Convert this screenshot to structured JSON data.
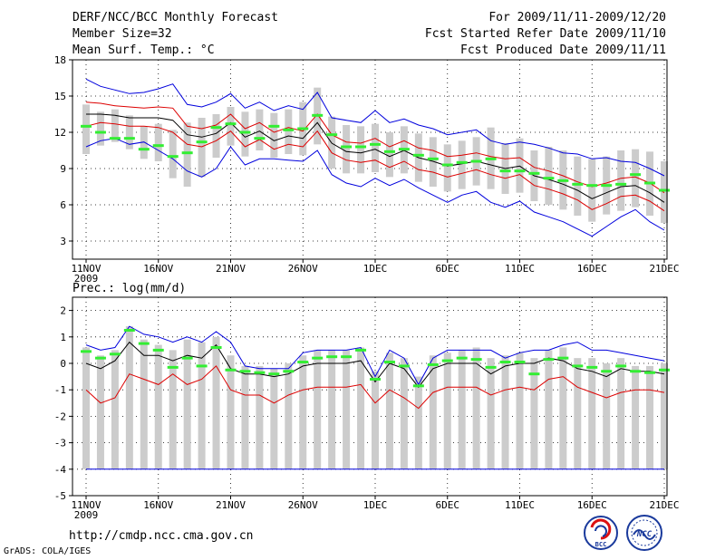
{
  "header": {
    "title": "DERF/NCC/BCC Monthly Forecast",
    "member_size": "Member Size=32",
    "variable": "Mean Surf. Temp.: °C",
    "forecast_period": "For 2009/11/11-2009/12/20",
    "start_date": "Fcst Started Refer Date 2009/11/10",
    "produced_date": "Fcst Produced Date 2009/11/11"
  },
  "footer": {
    "url": "http://cmdp.ncc.cma.gov.cn",
    "credit": "GrADS: COLA/IGES",
    "logo_bcc": "BCC",
    "logo_ncc": "NCC"
  },
  "colors": {
    "max_line": "#0000dd",
    "min_line": "#0000dd",
    "upper_line": "#dd0000",
    "lower_line": "#dd0000",
    "mean_line": "#000000",
    "observed": "#33ee33",
    "box": "#cccccc"
  },
  "x_ticks": [
    "11NOV",
    "16NOV",
    "21NOV",
    "26NOV",
    "1DEC",
    "6DEC",
    "11DEC",
    "16DEC",
    "21DEC"
  ],
  "x_year": "2009",
  "chart_data": [
    {
      "type": "line",
      "title": "Mean Surf. Temp.: °C",
      "ylabel": "°C",
      "ylim": [
        1.5,
        18
      ],
      "yticks": [
        3,
        6,
        9,
        12,
        15,
        18
      ],
      "x_start_day": 0,
      "x_ticks_days": [
        0,
        5,
        10,
        15,
        20,
        25,
        30,
        35,
        40
      ],
      "series": [
        {
          "name": "max",
          "values": [
            16.4,
            15.8,
            15.5,
            15.2,
            15.3,
            15.6,
            16.0,
            14.3,
            14.1,
            14.5,
            15.2,
            14.0,
            14.5,
            13.8,
            14.2,
            13.9,
            15.3,
            13.2,
            13.0,
            12.8,
            13.8,
            12.8,
            13.1,
            12.6,
            12.3,
            11.8,
            12.0,
            12.2,
            11.3,
            11.0,
            11.2,
            11.0,
            10.7,
            10.3,
            10.2,
            9.8,
            9.9,
            9.6,
            9.5,
            9.0,
            8.4
          ]
        },
        {
          "name": "upper",
          "values": [
            14.5,
            14.4,
            14.2,
            14.1,
            14.0,
            14.1,
            14.0,
            12.5,
            12.3,
            12.6,
            13.5,
            12.3,
            12.8,
            12.0,
            12.4,
            12.1,
            13.5,
            11.8,
            11.2,
            11.1,
            11.5,
            10.8,
            11.3,
            10.7,
            10.5,
            10.0,
            10.1,
            10.3,
            10.0,
            9.8,
            9.9,
            9.1,
            8.8,
            8.4,
            7.9,
            7.5,
            7.8,
            8.2,
            8.3,
            7.8,
            7.0
          ]
        },
        {
          "name": "mean",
          "values": [
            13.5,
            13.5,
            13.4,
            13.2,
            13.2,
            13.2,
            13.0,
            11.8,
            11.6,
            11.9,
            12.8,
            11.6,
            12.1,
            11.3,
            11.7,
            11.5,
            12.8,
            11.1,
            10.4,
            10.3,
            10.6,
            10.0,
            10.5,
            9.9,
            9.6,
            9.2,
            9.4,
            9.6,
            9.3,
            9.0,
            9.2,
            8.4,
            8.1,
            7.7,
            7.2,
            6.5,
            7.0,
            7.5,
            7.6,
            7.0,
            6.2
          ]
        },
        {
          "name": "lower",
          "values": [
            12.5,
            12.8,
            12.7,
            12.5,
            12.5,
            12.4,
            12.0,
            11.0,
            10.8,
            11.3,
            12.1,
            10.8,
            11.4,
            10.6,
            11.0,
            10.8,
            12.1,
            10.3,
            9.7,
            9.5,
            9.7,
            9.1,
            9.6,
            8.9,
            8.7,
            8.3,
            8.6,
            8.9,
            8.5,
            8.2,
            8.5,
            7.6,
            7.3,
            6.9,
            6.4,
            5.6,
            6.1,
            6.7,
            6.8,
            6.3,
            5.5
          ]
        },
        {
          "name": "min",
          "values": [
            10.8,
            11.3,
            11.5,
            11.0,
            11.2,
            10.5,
            9.8,
            8.8,
            8.3,
            9.0,
            10.8,
            9.3,
            9.8,
            9.8,
            9.7,
            9.6,
            10.5,
            8.5,
            7.8,
            7.5,
            8.2,
            7.6,
            8.1,
            7.4,
            6.8,
            6.2,
            6.8,
            7.1,
            6.2,
            5.8,
            6.3,
            5.4,
            5.0,
            4.6,
            4.0,
            3.4,
            4.2,
            5.0,
            5.6,
            4.6,
            3.9
          ]
        },
        {
          "name": "observed",
          "values": [
            12.5,
            12.0,
            11.5,
            11.5,
            10.6,
            10.9,
            10.0,
            10.3,
            11.2,
            12.4,
            12.7,
            12.0,
            11.5,
            12.5,
            12.2,
            12.3,
            13.4,
            11.8,
            10.8,
            10.8,
            11.0,
            10.4,
            10.6,
            10.1,
            9.8,
            9.3,
            9.5,
            9.6,
            9.8,
            8.8,
            8.8,
            8.6,
            8.2,
            8.0,
            7.7,
            7.6,
            7.6,
            7.7,
            8.5,
            7.8,
            7.2
          ]
        },
        {
          "name": "box_low",
          "values": [
            10.2,
            10.9,
            11.2,
            10.6,
            9.8,
            9.6,
            8.2,
            7.5,
            8.3,
            9.9,
            10.9,
            10.0,
            10.5,
            9.9,
            10.2,
            10.1,
            11.0,
            9.0,
            8.6,
            8.6,
            8.7,
            8.3,
            8.6,
            7.9,
            7.5,
            7.1,
            7.3,
            7.6,
            7.3,
            6.9,
            7.0,
            6.3,
            6.0,
            5.6,
            5.1,
            4.6,
            5.2,
            5.5,
            5.8,
            5.1,
            4.5
          ]
        },
        {
          "name": "box_high",
          "values": [
            14.3,
            13.7,
            13.9,
            13.4,
            12.5,
            12.7,
            12.2,
            12.8,
            13.2,
            13.5,
            14.1,
            13.7,
            13.9,
            13.6,
            13.9,
            14.5,
            15.7,
            13.3,
            12.6,
            12.5,
            12.7,
            12.0,
            12.5,
            11.9,
            11.6,
            11.0,
            11.3,
            11.6,
            12.4,
            11.1,
            11.5,
            10.5,
            10.8,
            10.5,
            10.0,
            9.8,
            10.0,
            10.5,
            10.6,
            10.4,
            9.6
          ]
        }
      ]
    },
    {
      "type": "line",
      "title": "Prec.: log(mm/d)",
      "ylabel": "log(mm/d)",
      "ylim": [
        -5,
        2.5
      ],
      "yticks": [
        -5,
        -4,
        -3,
        -2,
        -1,
        0,
        1,
        2
      ],
      "x_start_day": 0,
      "x_ticks_days": [
        0,
        5,
        10,
        15,
        20,
        25,
        30,
        35,
        40
      ],
      "series": [
        {
          "name": "max",
          "values": [
            0.7,
            0.5,
            0.6,
            1.4,
            1.1,
            1.0,
            0.8,
            1.0,
            0.8,
            1.2,
            0.8,
            -0.1,
            -0.2,
            -0.2,
            -0.2,
            0.4,
            0.5,
            0.5,
            0.5,
            0.6,
            -0.5,
            0.5,
            0.2,
            -0.8,
            0.2,
            0.5,
            0.5,
            0.5,
            0.5,
            0.2,
            0.4,
            0.5,
            0.5,
            0.7,
            0.8,
            0.5,
            0.5,
            0.4,
            0.3,
            0.2,
            0.1
          ]
        },
        {
          "name": "mean",
          "values": [
            0.0,
            -0.2,
            0.1,
            0.8,
            0.3,
            0.3,
            0.1,
            0.3,
            0.2,
            0.7,
            -0.2,
            -0.4,
            -0.4,
            -0.5,
            -0.4,
            -0.1,
            0.0,
            0.0,
            0.0,
            0.1,
            -0.7,
            0.0,
            -0.2,
            -0.9,
            -0.2,
            0.0,
            0.0,
            0.0,
            -0.4,
            -0.1,
            0.0,
            0.0,
            0.2,
            0.1,
            -0.2,
            -0.3,
            -0.5,
            -0.2,
            -0.3,
            -0.3,
            -0.4
          ]
        },
        {
          "name": "lower",
          "values": [
            -1.0,
            -1.5,
            -1.3,
            -0.4,
            -0.6,
            -0.8,
            -0.4,
            -0.8,
            -0.6,
            -0.1,
            -1.0,
            -1.2,
            -1.2,
            -1.5,
            -1.2,
            -1.0,
            -0.9,
            -0.9,
            -0.9,
            -0.8,
            -1.5,
            -1.0,
            -1.3,
            -1.7,
            -1.1,
            -0.9,
            -0.9,
            -0.9,
            -1.2,
            -1.0,
            -0.9,
            -1.0,
            -0.6,
            -0.5,
            -0.9,
            -1.1,
            -1.3,
            -1.1,
            -1.0,
            -1.0,
            -1.1
          ]
        },
        {
          "name": "floor",
          "values": [
            -4,
            -4,
            -4,
            -4,
            -4,
            -4,
            -4,
            -4,
            -4,
            -4,
            -4,
            -4,
            -4,
            -4,
            -4,
            -4,
            -4,
            -4,
            -4,
            -4,
            -4,
            -4,
            -4,
            -4,
            -4,
            -4,
            -4,
            -4,
            -4,
            -4,
            -4,
            -4,
            -4,
            -4,
            -4,
            -4,
            -4,
            -4,
            -4,
            -4,
            -4
          ]
        },
        {
          "name": "observed",
          "values": [
            0.45,
            0.2,
            0.35,
            1.25,
            0.75,
            0.5,
            -0.15,
            0.2,
            -0.1,
            0.6,
            -0.25,
            -0.3,
            -0.35,
            -0.4,
            -0.3,
            0.05,
            0.2,
            0.25,
            0.25,
            0.5,
            -0.6,
            0.05,
            -0.1,
            -0.85,
            -0.05,
            0.1,
            0.2,
            0.15,
            -0.15,
            0.05,
            0.05,
            -0.4,
            0.15,
            0.2,
            -0.1,
            -0.15,
            -0.3,
            -0.1,
            -0.3,
            -0.35,
            -0.25
          ]
        },
        {
          "name": "box_high",
          "values": [
            0.6,
            0.3,
            0.5,
            1.4,
            0.9,
            0.7,
            0.5,
            0.9,
            0.8,
            1.0,
            0.3,
            -0.1,
            -0.1,
            -0.2,
            0.0,
            0.3,
            0.5,
            0.5,
            0.5,
            0.6,
            -0.3,
            0.4,
            0.2,
            -0.5,
            0.3,
            0.4,
            0.5,
            0.6,
            0.2,
            0.3,
            0.4,
            0.2,
            0.5,
            0.6,
            0.2,
            0.2,
            0.0,
            0.2,
            -0.1,
            -0.1,
            0.0
          ]
        }
      ]
    }
  ]
}
